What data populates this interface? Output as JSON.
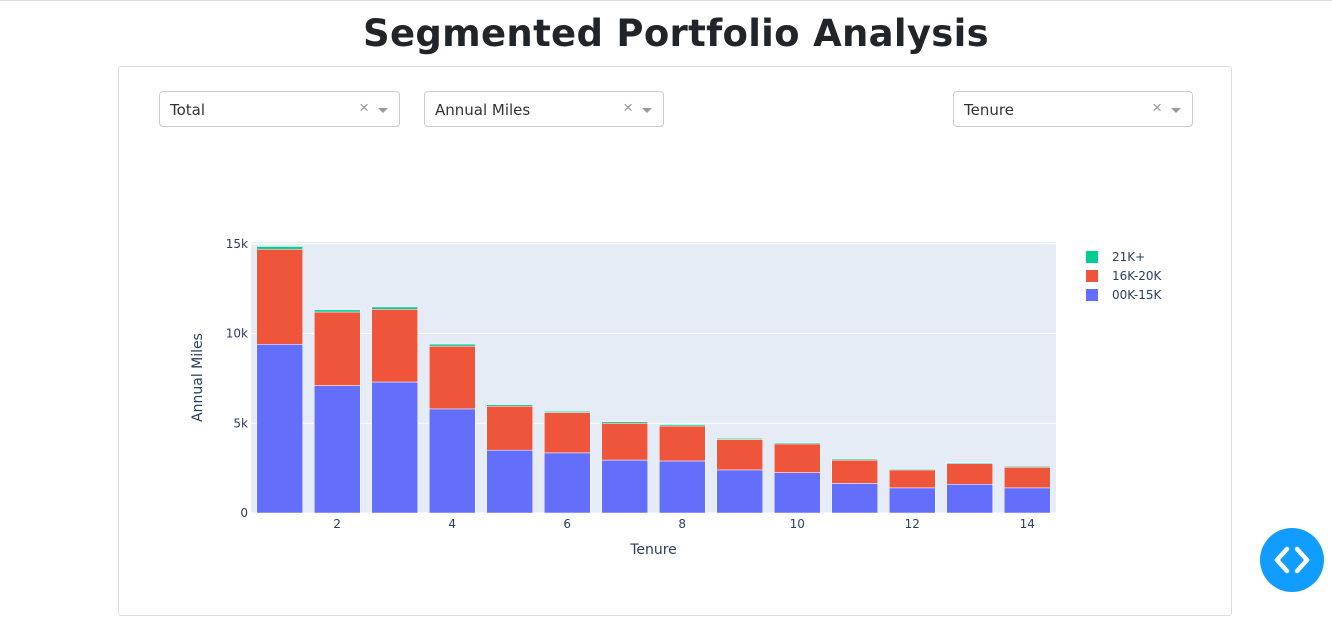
{
  "page": {
    "title": "Segmented Portfolio Analysis"
  },
  "controls": {
    "metric": {
      "value": "Total",
      "clear_glyph": "×"
    },
    "variable": {
      "value": "Annual Miles",
      "clear_glyph": "×"
    },
    "segment": {
      "value": "Tenure",
      "clear_glyph": "×"
    }
  },
  "fab": {
    "icon": "code-icon",
    "color": "#119dff"
  },
  "chart_data": {
    "type": "bar",
    "stacked": true,
    "x": [
      1,
      2,
      3,
      4,
      5,
      6,
      7,
      8,
      9,
      10,
      11,
      12,
      13,
      14
    ],
    "series": [
      {
        "name": "00K-15K",
        "color": "#636efa",
        "values": [
          9400,
          7100,
          7300,
          5800,
          3500,
          3350,
          2950,
          2900,
          2400,
          2250,
          1650,
          1400,
          1600,
          1400
        ]
      },
      {
        "name": "16K-20K",
        "color": "#ef553b",
        "values": [
          5300,
          4100,
          4050,
          3500,
          2450,
          2250,
          2050,
          1950,
          1700,
          1600,
          1300,
          1000,
          1150,
          1150
        ]
      },
      {
        "name": "21K+",
        "color": "#00cc96",
        "values": [
          150,
          120,
          130,
          110,
          80,
          70,
          80,
          80,
          60,
          60,
          60,
          50,
          50,
          50
        ]
      }
    ],
    "xlabel": "Tenure",
    "ylabel": "Annual Miles",
    "xticks": [
      2,
      4,
      6,
      8,
      10,
      12,
      14
    ],
    "yticks": [
      0,
      5000,
      10000,
      15000
    ],
    "ytick_labels": [
      "0",
      "5k",
      "10k",
      "15k"
    ],
    "xlim": [
      0.5,
      14.5
    ],
    "ylim": [
      0,
      15100
    ],
    "grid": true,
    "plot_bgcolor": "#e5ecf6",
    "legend_position": "right"
  }
}
